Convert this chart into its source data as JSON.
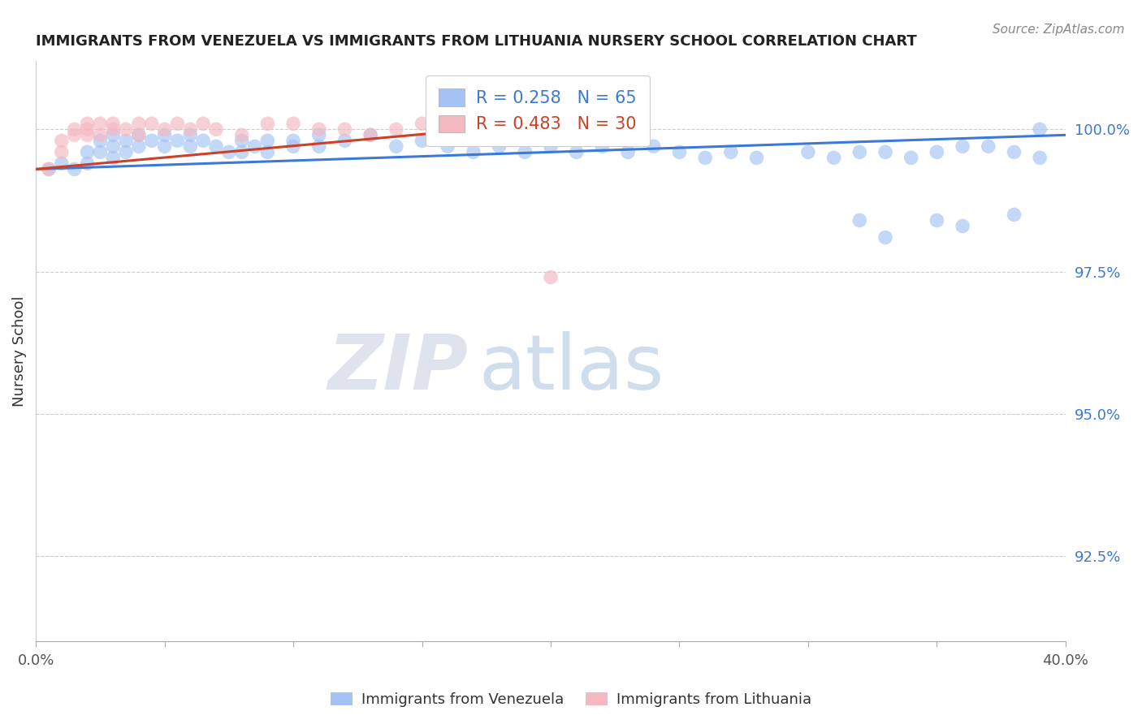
{
  "title": "IMMIGRANTS FROM VENEZUELA VS IMMIGRANTS FROM LITHUANIA NURSERY SCHOOL CORRELATION CHART",
  "source": "Source: ZipAtlas.com",
  "ylabel": "Nursery School",
  "ytick_labels": [
    "100.0%",
    "97.5%",
    "95.0%",
    "92.5%"
  ],
  "ytick_values": [
    1.0,
    0.975,
    0.95,
    0.925
  ],
  "xlim": [
    0.0,
    0.4
  ],
  "ylim": [
    0.91,
    1.012
  ],
  "blue_color": "#a4c2f4",
  "pink_color": "#f4b8c1",
  "blue_line_color": "#3c78d8",
  "pink_line_color": "#cc4125",
  "legend_blue_r": "R = 0.258",
  "legend_blue_n": "N = 65",
  "legend_pink_r": "R = 0.483",
  "legend_pink_n": "N = 30",
  "watermark_zip": "ZIP",
  "watermark_atlas": "atlas",
  "blue_scatter_x": [
    0.005,
    0.01,
    0.015,
    0.02,
    0.02,
    0.025,
    0.025,
    0.03,
    0.03,
    0.03,
    0.035,
    0.035,
    0.04,
    0.04,
    0.045,
    0.05,
    0.05,
    0.055,
    0.06,
    0.06,
    0.065,
    0.07,
    0.075,
    0.08,
    0.08,
    0.085,
    0.09,
    0.09,
    0.1,
    0.1,
    0.11,
    0.11,
    0.12,
    0.13,
    0.14,
    0.15,
    0.16,
    0.17,
    0.18,
    0.19,
    0.2,
    0.21,
    0.22,
    0.23,
    0.24,
    0.25,
    0.26,
    0.27,
    0.28,
    0.3,
    0.31,
    0.32,
    0.33,
    0.34,
    0.35,
    0.36,
    0.37,
    0.38,
    0.39,
    0.39,
    0.32,
    0.33,
    0.35,
    0.36,
    0.38
  ],
  "blue_scatter_y": [
    0.993,
    0.994,
    0.993,
    0.996,
    0.994,
    0.998,
    0.996,
    0.999,
    0.997,
    0.995,
    0.998,
    0.996,
    0.999,
    0.997,
    0.998,
    0.999,
    0.997,
    0.998,
    0.999,
    0.997,
    0.998,
    0.997,
    0.996,
    0.998,
    0.996,
    0.997,
    0.998,
    0.996,
    0.998,
    0.997,
    0.999,
    0.997,
    0.998,
    0.999,
    0.997,
    0.998,
    0.997,
    0.996,
    0.997,
    0.996,
    0.997,
    0.996,
    0.997,
    0.996,
    0.997,
    0.996,
    0.995,
    0.996,
    0.995,
    0.996,
    0.995,
    0.996,
    0.996,
    0.995,
    0.996,
    0.997,
    0.997,
    0.996,
    1.0,
    0.995,
    0.984,
    0.981,
    0.984,
    0.983,
    0.985
  ],
  "pink_scatter_x": [
    0.005,
    0.01,
    0.01,
    0.015,
    0.015,
    0.02,
    0.02,
    0.02,
    0.025,
    0.025,
    0.03,
    0.03,
    0.035,
    0.04,
    0.04,
    0.045,
    0.05,
    0.055,
    0.06,
    0.065,
    0.07,
    0.08,
    0.09,
    0.1,
    0.11,
    0.12,
    0.13,
    0.14,
    0.15,
    0.2
  ],
  "pink_scatter_y": [
    0.993,
    0.998,
    0.996,
    1.0,
    0.999,
    1.001,
    1.0,
    0.999,
    1.001,
    0.999,
    1.001,
    1.0,
    1.0,
    1.001,
    0.999,
    1.001,
    1.0,
    1.001,
    1.0,
    1.001,
    1.0,
    0.999,
    1.001,
    1.001,
    1.0,
    1.0,
    0.999,
    1.0,
    1.001,
    0.974
  ],
  "blue_line_x": [
    0.0,
    0.4
  ],
  "blue_line_y": [
    0.993,
    0.999
  ],
  "pink_line_x": [
    0.0,
    0.22
  ],
  "pink_line_y": [
    0.993,
    1.002
  ],
  "grid_color": "#cccccc",
  "title_color": "#222222",
  "axis_label_color": "#333333",
  "right_tick_color": "#3c78d8",
  "background_color": "#ffffff"
}
